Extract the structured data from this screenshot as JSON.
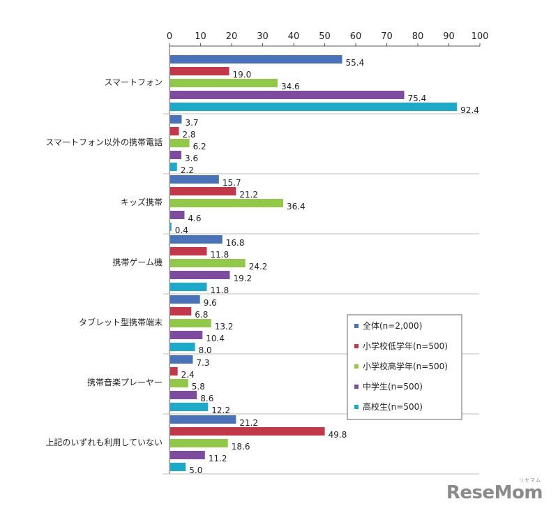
{
  "chart_data": {
    "type": "bar",
    "orientation": "horizontal",
    "categories": [
      "スマートフォン",
      "スマートフォン以外の携帯電話",
      "キッズ携帯",
      "携帯ゲーム機",
      "タブレット型携帯端末",
      "携帯音楽プレーヤー",
      "上記のいずれも利用していない"
    ],
    "series": [
      {
        "name": "全体(n=2,000)",
        "color": "#4a72b8",
        "values": [
          55.4,
          3.7,
          15.7,
          16.8,
          9.6,
          7.3,
          21.2
        ]
      },
      {
        "name": "小学校低学年(n=500)",
        "color": "#c0384a",
        "values": [
          19.0,
          2.8,
          21.2,
          11.8,
          6.8,
          2.4,
          49.8
        ]
      },
      {
        "name": "小学校高学年(n=500)",
        "color": "#92c84a",
        "values": [
          34.6,
          6.2,
          36.4,
          24.2,
          13.2,
          5.8,
          18.6
        ]
      },
      {
        "name": "中学生(n=500)",
        "color": "#7e4c9e",
        "values": [
          75.4,
          3.6,
          4.6,
          19.2,
          10.4,
          8.6,
          11.2
        ]
      },
      {
        "name": "高校生(n=500)",
        "color": "#1fa9c9",
        "values": [
          92.4,
          2.2,
          0.4,
          11.8,
          8.0,
          12.2,
          5.0
        ]
      }
    ],
    "xlim": [
      0,
      100
    ],
    "xticks": [
      "0",
      "10",
      "20",
      "30",
      "40",
      "50",
      "60",
      "70",
      "80",
      "90",
      "100"
    ],
    "axis_position": "top",
    "legend_position": "bottom-right",
    "grid": false
  },
  "watermark": {
    "text": "ReseMom",
    "sub": "リセマム"
  }
}
